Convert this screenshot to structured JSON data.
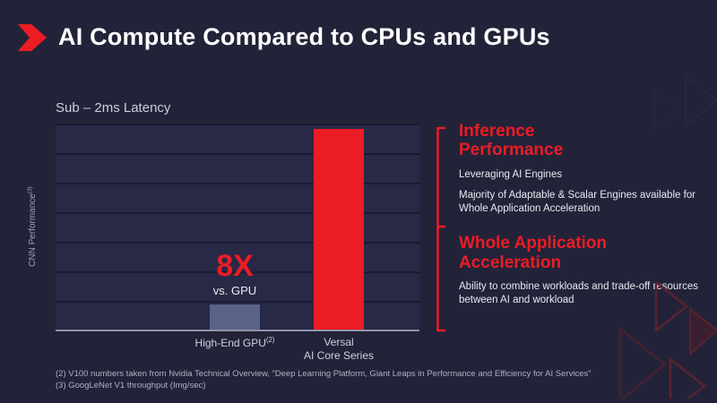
{
  "header": {
    "title": "AI Compute Compared to CPUs and GPUs",
    "icon": "arrow-bullet-icon"
  },
  "chart_data": {
    "type": "bar",
    "title": "Sub – 2ms Latency",
    "ylabel": "CNN Performance",
    "ylabel_sup": "(3)",
    "categories": [
      "High-End GPU (2)",
      "Versal AI Core Series"
    ],
    "values": [
      1,
      8
    ],
    "ylim": [
      0,
      8.2
    ],
    "grid": true,
    "legend": "none",
    "bar_colors": [
      "#5b6287",
      "#ec1c24"
    ],
    "annotation": {
      "label": "8X",
      "sublabel": "vs. GPU",
      "applies_to": "High-End GPU"
    },
    "xlabels": {
      "gpu": {
        "text": "High-End GPU",
        "sup": "(2)"
      },
      "versal": {
        "line1": "Versal",
        "line2": "AI Core Series"
      }
    }
  },
  "right_panel": {
    "sections": [
      {
        "heading": "Inference Performance",
        "bullets": [
          "Leveraging AI Engines",
          "Majority of Adaptable & Scalar Engines available for Whole Application Acceleration"
        ]
      },
      {
        "heading": "Whole Application Acceleration",
        "bullets": [
          "Ability to combine workloads and trade-off resources between AI and workload"
        ]
      }
    ]
  },
  "footnotes": [
    "(2) V100 numbers taken from Nvidia Technical Overview, “Deep Learning Platform, Giant Leaps in Performance and Efficiency for AI Services”",
    "(3) GoogLeNet V1 throughput (Img/sec)"
  ],
  "colors": {
    "background": "#222339",
    "plot_background": "#282947",
    "gridline": "#1b1c31",
    "accent_red": "#ec1c24",
    "gpu_bar": "#5b6287",
    "text_light": "#e8e9ef"
  }
}
